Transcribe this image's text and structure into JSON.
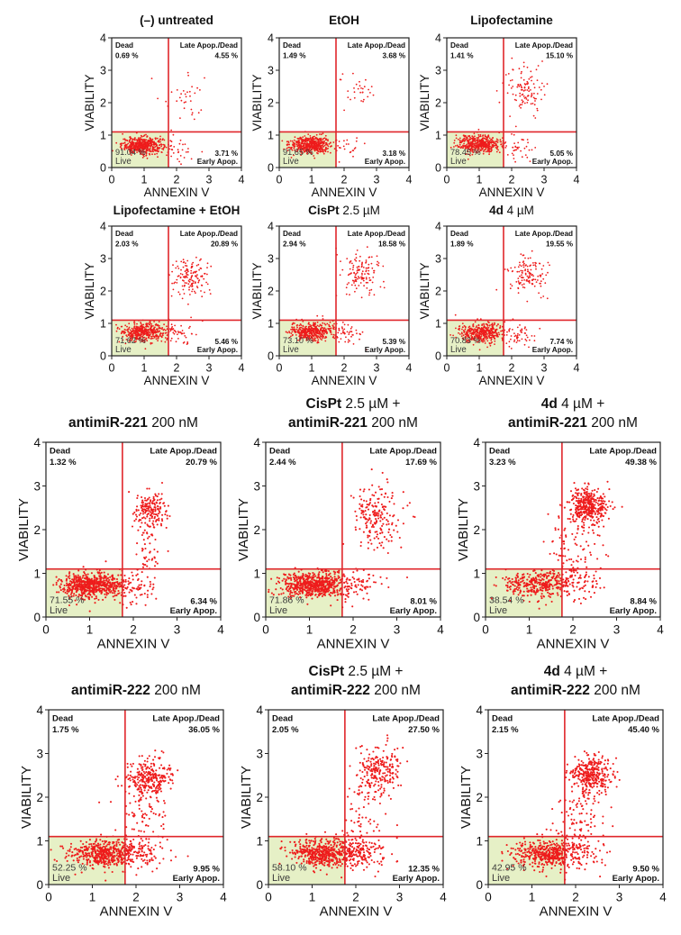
{
  "figure": {
    "quadrant_labels": {
      "ul": "Dead",
      "ur": "Late Apop./Dead",
      "ll": "Live",
      "lr": "Early Apop."
    },
    "colors": {
      "gate": "#e0262b",
      "dots": "#ee1c1c",
      "live_fill": "#e6f0c6",
      "frame": "#222222"
    }
  },
  "chart_data": [
    {
      "type": "scatter",
      "title": {
        "bold": "(–) untreated",
        "normal": ""
      },
      "title_line2": {
        "bold": "",
        "normal": ""
      },
      "xlabel": "ANNEXIN V",
      "ylabel": "VIABILITY",
      "xlim": [
        0,
        4
      ],
      "ylim": [
        0,
        4
      ],
      "ticks": [
        "0",
        "1",
        "2",
        "3",
        "4"
      ],
      "gate_x": 1.75,
      "gate_y": 1.1,
      "quadrants": {
        "dead": "0.69 %",
        "late": "4.55 %",
        "live": "91.04 %",
        "early": "3.71 %"
      },
      "clusters": [
        {
          "cx": 0.95,
          "cy": 0.68,
          "sx": 0.32,
          "sy": 0.13,
          "n": 500
        },
        {
          "cx": 2.25,
          "cy": 2.15,
          "sx": 0.35,
          "sy": 0.45,
          "n": 35
        },
        {
          "cx": 2.1,
          "cy": 0.6,
          "sx": 0.3,
          "sy": 0.2,
          "n": 25
        }
      ]
    },
    {
      "type": "scatter",
      "title": {
        "bold": "EtOH",
        "normal": ""
      },
      "title_line2": {
        "bold": "",
        "normal": ""
      },
      "xlabel": "ANNEXIN V",
      "ylabel": "VIABILITY",
      "xlim": [
        0,
        4
      ],
      "ylim": [
        0,
        4
      ],
      "ticks": [
        "0",
        "1",
        "2",
        "3",
        "4"
      ],
      "gate_x": 1.75,
      "gate_y": 1.1,
      "quadrants": {
        "dead": "1.49 %",
        "late": "3.68 %",
        "live": "91.65 %",
        "early": "3.18 %"
      },
      "clusters": [
        {
          "cx": 0.95,
          "cy": 0.7,
          "sx": 0.32,
          "sy": 0.13,
          "n": 500
        },
        {
          "cx": 2.35,
          "cy": 2.4,
          "sx": 0.3,
          "sy": 0.2,
          "n": 30
        },
        {
          "cx": 2.05,
          "cy": 0.6,
          "sx": 0.3,
          "sy": 0.2,
          "n": 20
        }
      ]
    },
    {
      "type": "scatter",
      "title": {
        "bold": "Lipofectamine",
        "normal": ""
      },
      "title_line2": {
        "bold": "",
        "normal": ""
      },
      "xlabel": "ANNEXIN V",
      "ylabel": "VIABILITY",
      "xlim": [
        0,
        4
      ],
      "ylim": [
        0,
        4
      ],
      "ticks": [
        "0",
        "1",
        "2",
        "3",
        "4"
      ],
      "gate_x": 1.75,
      "gate_y": 1.1,
      "quadrants": {
        "dead": "1.41 %",
        "late": "15.10 %",
        "live": "78.45 %",
        "early": "5.05 %"
      },
      "clusters": [
        {
          "cx": 1.0,
          "cy": 0.72,
          "sx": 0.33,
          "sy": 0.14,
          "n": 450
        },
        {
          "cx": 2.4,
          "cy": 2.35,
          "sx": 0.3,
          "sy": 0.4,
          "n": 110
        },
        {
          "cx": 2.1,
          "cy": 0.65,
          "sx": 0.3,
          "sy": 0.2,
          "n": 40
        }
      ]
    },
    {
      "type": "scatter",
      "title": {
        "bold": "Lipofectamine + EtOH",
        "normal": ""
      },
      "title_line2": {
        "bold": "",
        "normal": ""
      },
      "xlabel": "ANNEXIN V",
      "ylabel": "VIABILITY",
      "xlim": [
        0,
        4
      ],
      "ylim": [
        0,
        4
      ],
      "ticks": [
        "0",
        "1",
        "2",
        "3",
        "4"
      ],
      "gate_x": 1.75,
      "gate_y": 1.1,
      "quadrants": {
        "dead": "2.03 %",
        "late": "20.89 %",
        "live": "71.62 %",
        "early": "5.46 %"
      },
      "clusters": [
        {
          "cx": 1.0,
          "cy": 0.72,
          "sx": 0.35,
          "sy": 0.15,
          "n": 420
        },
        {
          "cx": 2.4,
          "cy": 2.4,
          "sx": 0.28,
          "sy": 0.3,
          "n": 140
        },
        {
          "cx": 2.1,
          "cy": 0.65,
          "sx": 0.3,
          "sy": 0.2,
          "n": 40
        }
      ]
    },
    {
      "type": "scatter",
      "title": {
        "bold": "CisPt",
        "normal": " 2.5 µM"
      },
      "title_line2": {
        "bold": "",
        "normal": ""
      },
      "xlabel": "ANNEXIN V",
      "ylabel": "VIABILITY",
      "xlim": [
        0,
        4
      ],
      "ylim": [
        0,
        4
      ],
      "ticks": [
        "0",
        "1",
        "2",
        "3",
        "4"
      ],
      "gate_x": 1.75,
      "gate_y": 1.1,
      "quadrants": {
        "dead": "2.94 %",
        "late": "18.58 %",
        "live": "73.10 %",
        "early": "5.39 %"
      },
      "clusters": [
        {
          "cx": 1.0,
          "cy": 0.75,
          "sx": 0.35,
          "sy": 0.15,
          "n": 420
        },
        {
          "cx": 2.5,
          "cy": 2.55,
          "sx": 0.3,
          "sy": 0.3,
          "n": 130
        },
        {
          "cx": 2.1,
          "cy": 0.65,
          "sx": 0.3,
          "sy": 0.2,
          "n": 40
        }
      ]
    },
    {
      "type": "scatter",
      "title": {
        "bold": "4d",
        "normal": " 4 µM"
      },
      "title_line2": {
        "bold": "",
        "normal": ""
      },
      "xlabel": "ANNEXIN V",
      "ylabel": "VIABILITY",
      "xlim": [
        0,
        4
      ],
      "ylim": [
        0,
        4
      ],
      "ticks": [
        "0",
        "1",
        "2",
        "3",
        "4"
      ],
      "gate_x": 1.75,
      "gate_y": 1.1,
      "quadrants": {
        "dead": "1.89 %",
        "late": "19.55 %",
        "live": "70.83 %",
        "early": "7.74 %"
      },
      "clusters": [
        {
          "cx": 1.05,
          "cy": 0.72,
          "sx": 0.35,
          "sy": 0.15,
          "n": 420
        },
        {
          "cx": 2.5,
          "cy": 2.5,
          "sx": 0.28,
          "sy": 0.3,
          "n": 130
        },
        {
          "cx": 2.15,
          "cy": 0.65,
          "sx": 0.3,
          "sy": 0.2,
          "n": 50
        }
      ]
    },
    {
      "type": "scatter",
      "title": {
        "bold": "",
        "normal": ""
      },
      "title_line2": {
        "bold": "antimiR-221",
        "normal": " 200 nM"
      },
      "xlabel": "ANNEXIN V",
      "ylabel": "VIABILITY",
      "xlim": [
        0,
        4
      ],
      "ylim": [
        0,
        4
      ],
      "ticks": [
        "0",
        "1",
        "2",
        "3",
        "4"
      ],
      "gate_x": 1.75,
      "gate_y": 1.1,
      "quadrants": {
        "dead": "1.32 %",
        "late": "20.79 %",
        "live": "71.55 %",
        "early": "6.34 %"
      },
      "clusters": [
        {
          "cx": 1.05,
          "cy": 0.72,
          "sx": 0.35,
          "sy": 0.14,
          "n": 600
        },
        {
          "cx": 2.4,
          "cy": 2.45,
          "sx": 0.2,
          "sy": 0.2,
          "n": 170
        },
        {
          "cx": 2.35,
          "cy": 1.7,
          "sx": 0.18,
          "sy": 0.45,
          "n": 60
        },
        {
          "cx": 2.05,
          "cy": 0.65,
          "sx": 0.25,
          "sy": 0.2,
          "n": 60
        }
      ]
    },
    {
      "type": "scatter",
      "title": {
        "bold": "CisPt",
        "normal": " 2.5 µM +"
      },
      "title_line2": {
        "bold": "antimiR-221",
        "normal": " 200 nM"
      },
      "xlabel": "ANNEXIN V",
      "ylabel": "VIABILITY",
      "xlim": [
        0,
        4
      ],
      "ylim": [
        0,
        4
      ],
      "ticks": [
        "0",
        "1",
        "2",
        "3",
        "4"
      ],
      "gate_x": 1.75,
      "gate_y": 1.1,
      "quadrants": {
        "dead": "2.44 %",
        "late": "17.69 %",
        "live": "71.86 %",
        "early": "8.01 %"
      },
      "clusters": [
        {
          "cx": 1.1,
          "cy": 0.75,
          "sx": 0.38,
          "sy": 0.15,
          "n": 600
        },
        {
          "cx": 2.55,
          "cy": 2.3,
          "sx": 0.28,
          "sy": 0.4,
          "n": 200
        },
        {
          "cx": 2.1,
          "cy": 0.7,
          "sx": 0.3,
          "sy": 0.2,
          "n": 70
        }
      ]
    },
    {
      "type": "scatter",
      "title": {
        "bold": "4d",
        "normal": " 4 µM +"
      },
      "title_line2": {
        "bold": "antimiR-221",
        "normal": " 200 nM"
      },
      "xlabel": "ANNEXIN V",
      "ylabel": "VIABILITY",
      "xlim": [
        0,
        4
      ],
      "ylim": [
        0,
        4
      ],
      "ticks": [
        "0",
        "1",
        "2",
        "3",
        "4"
      ],
      "gate_x": 1.75,
      "gate_y": 1.1,
      "quadrants": {
        "dead": "3.23 %",
        "late": "49.38 %",
        "live": "38.54 %",
        "early": "8.84 %"
      },
      "clusters": [
        {
          "cx": 1.2,
          "cy": 0.75,
          "sx": 0.38,
          "sy": 0.16,
          "n": 320
        },
        {
          "cx": 2.35,
          "cy": 2.55,
          "sx": 0.22,
          "sy": 0.22,
          "n": 380
        },
        {
          "cx": 2.05,
          "cy": 1.55,
          "sx": 0.3,
          "sy": 0.45,
          "n": 110
        },
        {
          "cx": 2.05,
          "cy": 0.75,
          "sx": 0.3,
          "sy": 0.2,
          "n": 70
        }
      ]
    },
    {
      "type": "scatter",
      "title": {
        "bold": "",
        "normal": ""
      },
      "title_line2": {
        "bold": "antimiR-222",
        "normal": " 200 nM"
      },
      "xlabel": "ANNEXIN V",
      "ylabel": "VIABILITY",
      "xlim": [
        0,
        4
      ],
      "ylim": [
        0,
        4
      ],
      "ticks": [
        "0",
        "1",
        "2",
        "3",
        "4"
      ],
      "gate_x": 1.75,
      "gate_y": 1.1,
      "quadrants": {
        "dead": "1.75 %",
        "late": "36.05 %",
        "live": "52.25 %",
        "early": "9.95 %"
      },
      "clusters": [
        {
          "cx": 1.3,
          "cy": 0.7,
          "sx": 0.4,
          "sy": 0.15,
          "n": 480
        },
        {
          "cx": 2.3,
          "cy": 2.45,
          "sx": 0.25,
          "sy": 0.2,
          "n": 260
        },
        {
          "cx": 2.15,
          "cy": 1.55,
          "sx": 0.28,
          "sy": 0.5,
          "n": 90
        },
        {
          "cx": 2.1,
          "cy": 0.7,
          "sx": 0.3,
          "sy": 0.2,
          "n": 80
        }
      ]
    },
    {
      "type": "scatter",
      "title": {
        "bold": "CisPt",
        "normal": " 2.5 µM +"
      },
      "title_line2": {
        "bold": "antimiR-222",
        "normal": " 200 nM"
      },
      "xlabel": "ANNEXIN V",
      "ylabel": "VIABILITY",
      "xlim": [
        0,
        4
      ],
      "ylim": [
        0,
        4
      ],
      "ticks": [
        "0",
        "1",
        "2",
        "3",
        "4"
      ],
      "gate_x": 1.75,
      "gate_y": 1.1,
      "quadrants": {
        "dead": "2.05 %",
        "late": "27.50 %",
        "live": "58.10 %",
        "early": "12.35 %"
      },
      "clusters": [
        {
          "cx": 1.3,
          "cy": 0.72,
          "sx": 0.4,
          "sy": 0.16,
          "n": 520
        },
        {
          "cx": 2.55,
          "cy": 2.55,
          "sx": 0.25,
          "sy": 0.3,
          "n": 230
        },
        {
          "cx": 2.2,
          "cy": 1.5,
          "sx": 0.3,
          "sy": 0.5,
          "n": 60
        },
        {
          "cx": 2.15,
          "cy": 0.7,
          "sx": 0.3,
          "sy": 0.2,
          "n": 110
        }
      ]
    },
    {
      "type": "scatter",
      "title": {
        "bold": "4d",
        "normal": " 4 µM +"
      },
      "title_line2": {
        "bold": "antimiR-222",
        "normal": " 200 nM"
      },
      "xlabel": "ANNEXIN V",
      "ylabel": "VIABILITY",
      "xlim": [
        0,
        4
      ],
      "ylim": [
        0,
        4
      ],
      "ticks": [
        "0",
        "1",
        "2",
        "3",
        "4"
      ],
      "gate_x": 1.75,
      "gate_y": 1.1,
      "quadrants": {
        "dead": "2.15 %",
        "late": "45.40 %",
        "live": "42.95 %",
        "early": "9.50 %"
      },
      "clusters": [
        {
          "cx": 1.35,
          "cy": 0.7,
          "sx": 0.4,
          "sy": 0.16,
          "n": 420
        },
        {
          "cx": 2.35,
          "cy": 2.5,
          "sx": 0.22,
          "sy": 0.22,
          "n": 330
        },
        {
          "cx": 2.1,
          "cy": 1.5,
          "sx": 0.3,
          "sy": 0.5,
          "n": 100
        },
        {
          "cx": 2.1,
          "cy": 0.75,
          "sx": 0.3,
          "sy": 0.2,
          "n": 80
        }
      ]
    }
  ]
}
